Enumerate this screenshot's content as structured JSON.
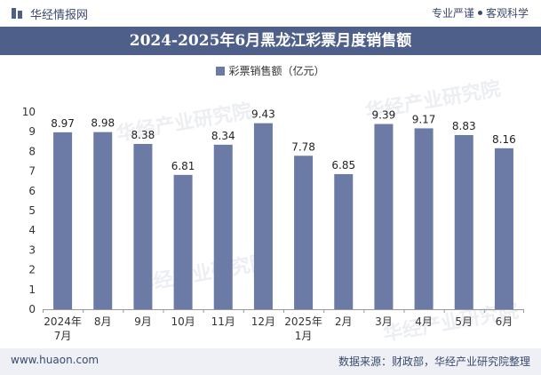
{
  "header": {
    "brand": "华经情报网",
    "tag_left": "专业严谨",
    "tag_right": "客观科学"
  },
  "title": "2024-2025年6月黑龙江彩票月度销售额",
  "legend": "彩票销售额（亿元）",
  "footer": {
    "url": "www.huaon.com",
    "source": "数据来源：财政部，华经产业研究院整理"
  },
  "watermark": "华经产业研究院",
  "colors": {
    "bar": "#6b7ba5",
    "title_bg": "#4e5f8a",
    "footer_bg": "#eef0f6"
  },
  "chart_data": {
    "type": "bar",
    "categories": [
      "2024年\n7月",
      "8月",
      "9月",
      "10月",
      "11月",
      "12月",
      "2025年\n1月",
      "2月",
      "3月",
      "4月",
      "5月",
      "6月"
    ],
    "series": [
      {
        "name": "彩票销售额（亿元）",
        "values": [
          8.97,
          8.98,
          8.38,
          6.81,
          8.34,
          9.43,
          7.78,
          6.85,
          9.39,
          9.17,
          8.83,
          8.16
        ]
      }
    ],
    "ylim": [
      0,
      10
    ],
    "yticks": [
      0,
      1,
      2,
      3,
      4,
      5,
      6,
      7,
      8,
      9,
      10
    ],
    "grid": false,
    "legend_position": "top-center"
  }
}
